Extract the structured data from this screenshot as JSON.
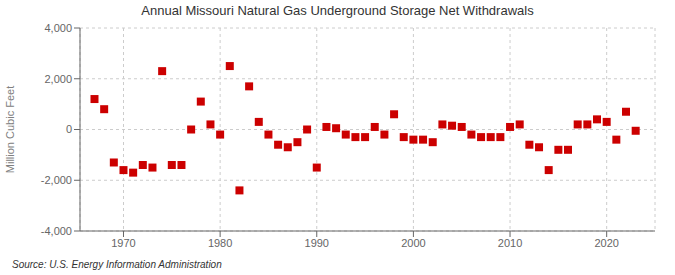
{
  "chart_data": {
    "type": "scatter",
    "title": "Annual Missouri Natural Gas Underground Storage Net Withdrawals",
    "ylabel": "Million Cubic Feet",
    "annotations": [
      "Source: U.S. Energy Information Administration"
    ],
    "color": "#cc0000",
    "marker": "square",
    "grid": true,
    "xlim": [
      1965.5,
      2025
    ],
    "ylim": [
      -4000,
      4000
    ],
    "xticks": [
      1970,
      1980,
      1990,
      2000,
      2010,
      2020
    ],
    "yticks": [
      {
        "value": -4000,
        "label": "-4,000"
      },
      {
        "value": -2000,
        "label": "-2,000"
      },
      0,
      {
        "value": 2000,
        "label": "2,000"
      },
      {
        "value": 4000,
        "label": "4,000"
      }
    ],
    "x": [
      1967,
      1968,
      1969,
      1970,
      1971,
      1972,
      1973,
      1974,
      1975,
      1976,
      1977,
      1978,
      1979,
      1980,
      1981,
      1982,
      1983,
      1984,
      1985,
      1986,
      1987,
      1988,
      1989,
      1990,
      1991,
      1992,
      1993,
      1994,
      1995,
      1996,
      1997,
      1998,
      1999,
      2000,
      2001,
      2002,
      2003,
      2004,
      2005,
      2006,
      2007,
      2008,
      2009,
      2010,
      2011,
      2012,
      2013,
      2014,
      2015,
      2016,
      2017,
      2018,
      2019,
      2020,
      2021,
      2022,
      2023
    ],
    "values": [
      1200,
      800,
      -1300,
      -1600,
      -1700,
      -1400,
      -1500,
      2300,
      -1400,
      -1400,
      0,
      1100,
      200,
      -200,
      2500,
      -2400,
      1700,
      300,
      -200,
      -600,
      -700,
      -500,
      0,
      -1500,
      100,
      50,
      -200,
      -300,
      -300,
      100,
      -200,
      600,
      -300,
      -400,
      -400,
      -500,
      200,
      150,
      100,
      -200,
      -300,
      -300,
      -300,
      100,
      200,
      -600,
      -700,
      -1600,
      -800,
      -800,
      200,
      200,
      400,
      300,
      -400,
      700,
      -50
    ]
  }
}
